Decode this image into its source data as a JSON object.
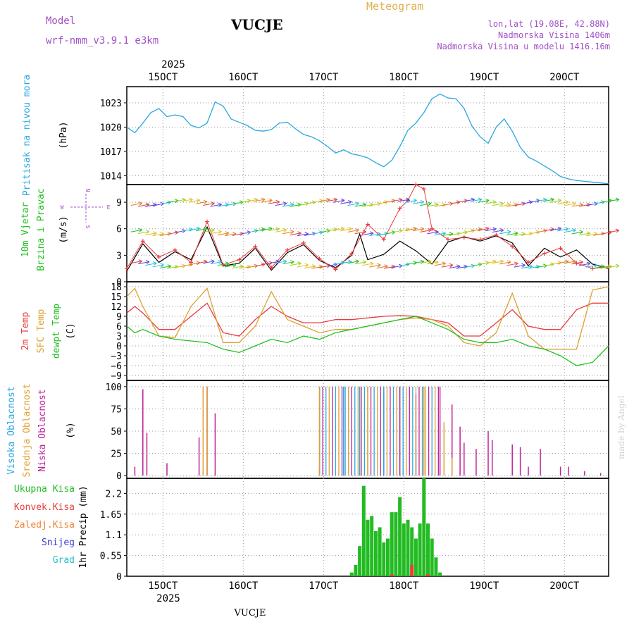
{
  "header": {
    "model_label": "Model",
    "model_name": "wrf-nmm_v3.9.1  e3km",
    "station": "VUCJE",
    "title": "Meteogram",
    "lonlat": "lon,lat (19.08E, 42.88N)",
    "elevation": "Nadmorska Visina 1406m",
    "model_elevation": "Nadmorska Visina u modelu 1416.16m",
    "year": "2025",
    "footer_station": "VUCJE",
    "credit": "made by Angel"
  },
  "colors": {
    "pressure": "#2aa7e0",
    "wind": "#20c020",
    "temp2m": "#e83c3c",
    "sfc": "#e0a030",
    "dew": "#20c020",
    "high_cloud": "#2aa7e0",
    "mid_cloud": "#e0a030",
    "low_cloud": "#c0209a",
    "total_precip": "#22bb22",
    "conv_precip": "#e83c3c",
    "frozen": "#f08030",
    "snow": "#3a3ad0",
    "graupel": "#20c0c0",
    "header_purple": "#a050c8",
    "title_orange": "#e0b050"
  },
  "chart_data": {
    "type": "line",
    "x_ticks": [
      "15OCT",
      "16OCT",
      "17OCT",
      "18OCT",
      "19OCT",
      "20OCT"
    ],
    "x_range_days": [
      14.55,
      20.55
    ],
    "panels": [
      {
        "id": "pressure",
        "ylabel": "(hPa)",
        "legend": [
          "Pritisak na nivou mora"
        ],
        "yticks": [
          "1023",
          "1020",
          "1017",
          "1014"
        ],
        "ylim": [
          1012.9,
          1025.0
        ],
        "series": [
          {
            "name": "Pritisak na nivou mora",
            "x": [
              14.55,
              14.65,
              14.75,
              14.85,
              14.95,
              15.05,
              15.15,
              15.25,
              15.35,
              15.45,
              15.55,
              15.65,
              15.75,
              15.85,
              15.95,
              16.05,
              16.15,
              16.25,
              16.35,
              16.45,
              16.55,
              16.65,
              16.75,
              16.85,
              16.95,
              17.05,
              17.15,
              17.25,
              17.35,
              17.45,
              17.55,
              17.65,
              17.75,
              17.85,
              17.95,
              18.05,
              18.15,
              18.25,
              18.35,
              18.45,
              18.55,
              18.65,
              18.75,
              18.85,
              18.95,
              19.05,
              19.15,
              19.25,
              19.35,
              19.45,
              19.55,
              19.65,
              19.75,
              19.85,
              19.95,
              20.05,
              20.15,
              20.25,
              20.35,
              20.45,
              20.55
            ],
            "values": [
              1020,
              1019.3,
              1020.5,
              1021.8,
              1022.3,
              1021.3,
              1021.5,
              1021.3,
              1020.2,
              1019.9,
              1020.5,
              1023.1,
              1022.6,
              1021.0,
              1020.6,
              1020.2,
              1019.6,
              1019.5,
              1019.7,
              1020.5,
              1020.6,
              1019.8,
              1019.1,
              1018.8,
              1018.3,
              1017.6,
              1016.8,
              1017.2,
              1016.7,
              1016.5,
              1016.2,
              1015.6,
              1015.1,
              1015.9,
              1017.6,
              1019.6,
              1020.5,
              1021.8,
              1023.5,
              1024.1,
              1023.6,
              1023.5,
              1022.3,
              1020.1,
              1018.8,
              1018.0,
              1020.0,
              1021.0,
              1019.5,
              1017.5,
              1016.3,
              1015.8,
              1015.2,
              1014.6,
              1013.9,
              1013.6,
              1013.4,
              1013.3,
              1013.2,
              1013.1,
              1013.0
            ]
          }
        ]
      },
      {
        "id": "wind",
        "ylabel": "(m/s)",
        "legend": [
          "10m Vjetar",
          "Brzina i Pravac"
        ],
        "compass": [
          "N",
          "E",
          "W",
          "S"
        ],
        "yticks": [
          "9",
          "6",
          "3",
          "0"
        ],
        "ylim": [
          0,
          11
        ],
        "series": [
          {
            "name": "Brzina",
            "x": [
              14.55,
              14.75,
              14.95,
              15.15,
              15.35,
              15.55,
              15.75,
              15.95,
              16.15,
              16.35,
              16.55,
              16.75,
              16.95,
              17.15,
              17.35,
              17.45,
              17.55,
              17.75,
              17.95,
              18.15,
              18.35,
              18.55,
              18.75,
              18.95,
              19.15,
              19.35,
              19.55,
              19.75,
              19.95,
              20.15,
              20.35,
              20.55
            ],
            "values": [
              1.2,
              4.3,
              2.2,
              3.4,
              2.5,
              6.2,
              1.8,
              2.1,
              3.8,
              1.3,
              3.3,
              4.2,
              2.4,
              1.6,
              3.0,
              5.4,
              2.5,
              3.1,
              4.6,
              3.5,
              2.0,
              4.5,
              5.1,
              4.6,
              5.2,
              4.4,
              1.8,
              3.8,
              2.8,
              3.6,
              2.0,
              1.5
            ]
          },
          {
            "name": "Max",
            "x": [
              14.55,
              14.75,
              14.95,
              15.15,
              15.35,
              15.55,
              15.75,
              15.95,
              16.15,
              16.35,
              16.55,
              16.75,
              16.95,
              17.15,
              17.35,
              17.55,
              17.75,
              17.95,
              18.05,
              18.15,
              18.25,
              18.35,
              18.55,
              18.75,
              18.95,
              19.15,
              19.35,
              19.55,
              19.75,
              19.95,
              20.15,
              20.35,
              20.55
            ],
            "values": [
              1.5,
              4.6,
              2.8,
              3.6,
              2.2,
              6.8,
              1.9,
              2.5,
              4.0,
              1.6,
              3.6,
              4.4,
              2.6,
              1.4,
              3.2,
              6.5,
              4.8,
              8.3,
              9.2,
              11.0,
              10.5,
              6.0,
              4.8,
              5.0,
              4.8,
              5.3,
              4.0,
              2.2,
              3.2,
              3.8,
              2.1,
              1.5,
              1.7
            ]
          }
        ]
      },
      {
        "id": "temperature",
        "ylabel": "(C)",
        "legend": [
          "2m Temp",
          "SFC Temp",
          "dewpt Temp"
        ],
        "yticks": [
          "18",
          "15",
          "12",
          "9",
          "6",
          "3",
          "0",
          "−3",
          "−6",
          "−9"
        ],
        "ylim": [
          -10.5,
          19.5
        ],
        "series": [
          {
            "name": "2m Temp",
            "x": [
              14.55,
              14.65,
              14.75,
              14.95,
              15.15,
              15.35,
              15.55,
              15.75,
              15.95,
              16.15,
              16.35,
              16.55,
              16.75,
              16.95,
              17.15,
              17.35,
              17.55,
              17.75,
              17.95,
              18.15,
              18.35,
              18.55,
              18.75,
              18.95,
              19.15,
              19.35,
              19.55,
              19.75,
              19.95,
              20.15,
              20.35,
              20.55
            ],
            "values": [
              10,
              12,
              10,
              5,
              5,
              9,
              13,
              4,
              3,
              8,
              12,
              9,
              7,
              7,
              8,
              8,
              8.5,
              9,
              9.2,
              9,
              8,
              7,
              3,
              3,
              7,
              11,
              6,
              5,
              5,
              11,
              13,
              13
            ]
          },
          {
            "name": "SFC Temp",
            "x": [
              14.55,
              14.65,
              14.75,
              14.95,
              15.15,
              15.35,
              15.55,
              15.75,
              15.95,
              16.15,
              16.35,
              16.55,
              16.75,
              16.95,
              17.15,
              17.35,
              17.55,
              17.75,
              17.95,
              18.15,
              18.35,
              18.55,
              18.75,
              18.95,
              19.15,
              19.35,
              19.55,
              19.75,
              19.95,
              20.15,
              20.35,
              20.55
            ],
            "values": [
              15,
              17.5,
              12,
              3,
              2.5,
              12,
              17.5,
              1,
              1,
              6,
              16.5,
              8,
              6,
              4,
              5,
              5,
              6,
              7,
              8,
              8.5,
              8,
              6,
              1,
              0,
              4,
              16,
              3,
              -1,
              -1,
              -1,
              17,
              18
            ]
          },
          {
            "name": "dewpt Temp",
            "x": [
              14.55,
              14.65,
              14.75,
              14.95,
              15.15,
              15.35,
              15.55,
              15.75,
              15.95,
              16.15,
              16.35,
              16.55,
              16.75,
              16.95,
              17.15,
              17.35,
              17.55,
              17.75,
              17.95,
              18.15,
              18.35,
              18.55,
              18.75,
              18.95,
              19.15,
              19.35,
              19.55,
              19.75,
              19.95,
              20.15,
              20.35,
              20.55
            ],
            "values": [
              6,
              4,
              5,
              3,
              2,
              1.5,
              1,
              -1,
              -2,
              0,
              2,
              1,
              3,
              2,
              4,
              5,
              6,
              7,
              8,
              9,
              7,
              5,
              2,
              1,
              1,
              2,
              0,
              -1,
              -3,
              -6,
              -5,
              0
            ]
          }
        ]
      },
      {
        "id": "clouds",
        "ylabel": "(%)",
        "legend": [
          "Visoka Oblacnost",
          "Srednja Oblacnost",
          "Niska Oblacnost"
        ],
        "yticks": [
          "100",
          "75",
          "50",
          "25",
          "0"
        ],
        "ylim": [
          -3,
          107
        ],
        "series": [
          {
            "name": "Niska Oblacnost",
            "x": [
              14.65,
              14.75,
              14.8,
              15.05,
              15.45,
              15.55,
              15.65,
              16.95,
              17.75,
              18.15,
              18.45,
              18.6,
              18.7,
              18.75,
              18.9,
              19.05,
              19.1,
              19.35,
              19.45,
              19.55,
              19.7,
              19.95,
              20.05,
              20.25,
              20.45
            ],
            "values": [
              10,
              97,
              48,
              14,
              43,
              100,
              70,
              10,
              95,
              92,
              100,
              80,
              55,
              37,
              30,
              50,
              40,
              35,
              32,
              10,
              30,
              10,
              10,
              5,
              3
            ]
          },
          {
            "name": "Srednja Oblacnost",
            "x": [
              15.5,
              15.55,
              16.95,
              17.55,
              17.95,
              18.25,
              18.5,
              18.6
            ],
            "values": [
              100,
              100,
              100,
              100,
              100,
              100,
              60,
              20
            ]
          },
          {
            "name": "Visoka Oblacnost",
            "x": [
              16.95,
              17.25,
              17.45,
              17.75,
              17.95,
              18.15
            ],
            "values": [
              100,
              100,
              100,
              100,
              100,
              30
            ]
          }
        ]
      },
      {
        "id": "precip",
        "ylabel": "1hr Precip (mm)",
        "legend": [
          "Ukupna Kisa",
          "Konvek.Kisa",
          "Zaledj.Kisa",
          "Snijeg",
          "Grad"
        ],
        "yticks": [
          "2.2",
          "1.65",
          "1.1",
          "0.55",
          "0"
        ],
        "ylim": [
          0,
          2.6
        ],
        "series": [
          {
            "name": "Ukupna Kisa",
            "x": [
              17.35,
              17.4,
              17.45,
              17.5,
              17.55,
              17.6,
              17.65,
              17.7,
              17.75,
              17.8,
              17.85,
              17.9,
              17.95,
              18.0,
              18.05,
              18.1,
              18.15,
              18.2,
              18.25,
              18.3,
              18.35,
              18.4,
              18.45
            ],
            "values": [
              0.1,
              0.3,
              0.8,
              2.4,
              1.5,
              1.6,
              1.2,
              1.3,
              0.9,
              1.0,
              1.7,
              1.7,
              2.1,
              1.4,
              1.5,
              1.3,
              1.0,
              1.4,
              2.6,
              1.4,
              1.0,
              0.5,
              0.1
            ]
          },
          {
            "name": "Konvek.Kisa",
            "x": [
              17.85,
              18.1,
              18.3
            ],
            "values": [
              0.05,
              0.3,
              0.05
            ]
          }
        ]
      }
    ]
  }
}
